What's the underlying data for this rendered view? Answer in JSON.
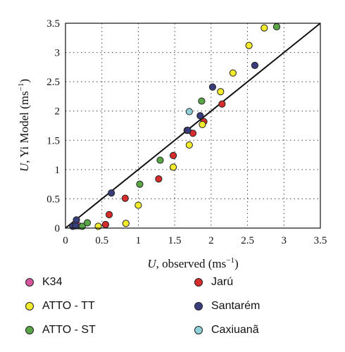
{
  "chart_data": {
    "type": "scatter",
    "xlabel": {
      "var": "U",
      "text": ", observed (ms",
      "sup": "−1",
      "end": ")"
    },
    "ylabel": {
      "var": "U",
      "text": ", Yi Model (ms",
      "sup": "−1",
      "end": ")"
    },
    "xlim": [
      0,
      3.5
    ],
    "ylim": [
      0,
      3.5
    ],
    "xticks": [
      "0",
      "0.5",
      "1",
      "1.5",
      "2",
      "2.5",
      "3",
      "3.5"
    ],
    "yticks": [
      "0",
      "0.5",
      "1",
      "1.5",
      "2",
      "2.5",
      "3",
      "3.5"
    ],
    "grid": true,
    "reference_line": "1:1",
    "legend_position": "below",
    "series": [
      {
        "name": "K34",
        "color": "#d4559c",
        "points": [
          [
            0.18,
            0.04
          ],
          [
            0.55,
            0.06
          ],
          [
            1.67,
            1.67
          ]
        ]
      },
      {
        "name": "Jarú",
        "color": "#d62c2c",
        "points": [
          [
            0.55,
            0.06
          ],
          [
            0.6,
            0.23
          ],
          [
            0.82,
            0.51
          ],
          [
            1.28,
            0.84
          ],
          [
            1.48,
            1.24
          ],
          [
            1.75,
            1.62
          ],
          [
            1.9,
            1.82
          ],
          [
            2.15,
            2.12
          ]
        ]
      },
      {
        "name": "ATTO - TT",
        "color": "#f2ea2a",
        "points": [
          [
            0.45,
            0.03
          ],
          [
            0.83,
            0.08
          ],
          [
            1.0,
            0.39
          ],
          [
            1.48,
            1.04
          ],
          [
            1.7,
            1.42
          ],
          [
            1.88,
            1.77
          ],
          [
            2.13,
            2.33
          ],
          [
            2.3,
            2.65
          ],
          [
            2.52,
            3.12
          ],
          [
            2.73,
            3.42
          ]
        ]
      },
      {
        "name": "Santarém",
        "color": "#3a3d7c",
        "points": [
          [
            0.1,
            0.03
          ],
          [
            0.14,
            0.04
          ],
          [
            0.15,
            0.14
          ],
          [
            0.63,
            0.6
          ],
          [
            1.68,
            1.67
          ],
          [
            1.85,
            1.92
          ],
          [
            2.02,
            2.41
          ],
          [
            2.6,
            2.78
          ]
        ]
      },
      {
        "name": "ATTO - ST",
        "color": "#5aa646",
        "points": [
          [
            0.23,
            0.03
          ],
          [
            0.3,
            0.09
          ],
          [
            1.02,
            0.75
          ],
          [
            1.3,
            1.16
          ],
          [
            1.87,
            2.17
          ],
          [
            2.9,
            3.44
          ]
        ]
      },
      {
        "name": "Caxiuanã",
        "color": "#8fd0d8",
        "points": [
          [
            1.7,
            1.99
          ]
        ]
      }
    ]
  },
  "legend_order": [
    0,
    2,
    4,
    1,
    3,
    5
  ]
}
